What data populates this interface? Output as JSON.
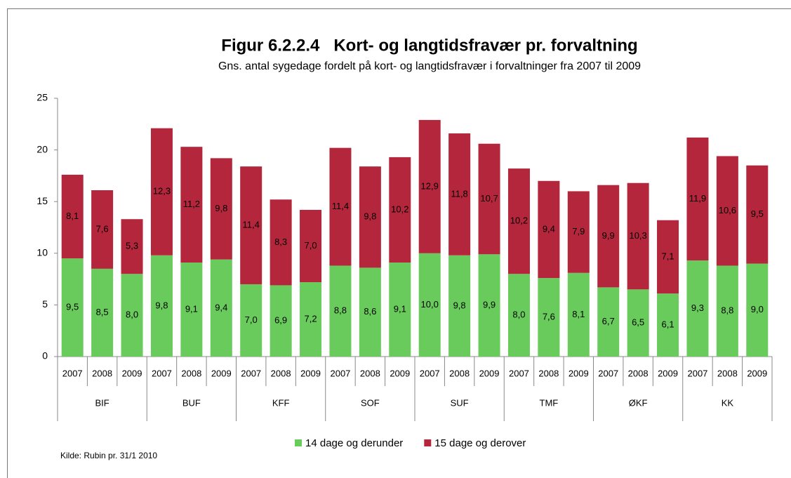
{
  "chart_data": {
    "type": "stacked_bar",
    "title": "Figur 6.2.2.4   Kort- og langtidsfravær pr. forvaltning",
    "subtitle": "Gns. antal sygedage fordelt på kort- og langtidsfravær i forvaltninger fra 2007 til 2009",
    "source": "Kilde: Rubin pr. 31/1 2010",
    "categories": [
      "2007",
      "2008",
      "2009",
      "2007",
      "2008",
      "2009",
      "2007",
      "2008",
      "2009",
      "2007",
      "2008",
      "2009",
      "2007",
      "2008",
      "2009",
      "2007",
      "2008",
      "2009",
      "2007",
      "2008",
      "2009",
      "2007",
      "2008",
      "2009"
    ],
    "groups": [
      "BIF",
      "BUF",
      "KFF",
      "SOF",
      "SUF",
      "TMF",
      "ØKF",
      "KK"
    ],
    "series": [
      {
        "name": "14 dage og derunder",
        "color": "#6acb5d",
        "values": [
          9.5,
          8.5,
          8.0,
          9.8,
          9.1,
          9.4,
          7.0,
          6.9,
          7.2,
          8.8,
          8.6,
          9.1,
          10.0,
          9.8,
          9.9,
          8.0,
          7.6,
          8.1,
          6.7,
          6.5,
          6.1,
          9.3,
          8.8,
          9.0
        ],
        "value_labels": [
          "9,5",
          "8,5",
          "8,0",
          "9,8",
          "9,1",
          "9,4",
          "7,0",
          "6,9",
          "7,2",
          "8,8",
          "8,6",
          "9,1",
          "10,0",
          "9,8",
          "9,9",
          "8,0",
          "7,6",
          "8,1",
          "6,7",
          "6,5",
          "6,1",
          "9,3",
          "8,8",
          "9,0"
        ]
      },
      {
        "name": "15 dage og derover",
        "color": "#b3263b",
        "values": [
          8.1,
          7.6,
          5.3,
          12.3,
          11.2,
          9.8,
          11.4,
          8.3,
          7.0,
          11.4,
          9.8,
          10.2,
          12.9,
          11.8,
          10.7,
          10.2,
          9.4,
          7.9,
          9.9,
          10.3,
          7.1,
          11.9,
          10.6,
          9.5
        ],
        "value_labels": [
          "8,1",
          "7,6",
          "5,3",
          "12,3",
          "11,2",
          "9,8",
          "11,4",
          "8,3",
          "7,0",
          "11,4",
          "9,8",
          "10,2",
          "12,9",
          "11,8",
          "10,7",
          "10,2",
          "9,4",
          "7,9",
          "9,9",
          "10,3",
          "7,1",
          "11,9",
          "10,6",
          "9,5"
        ]
      }
    ],
    "ylim": [
      0,
      25
    ],
    "yticks": [
      0,
      5,
      10,
      15,
      20,
      25
    ],
    "grid": false,
    "legend": "bottom"
  }
}
